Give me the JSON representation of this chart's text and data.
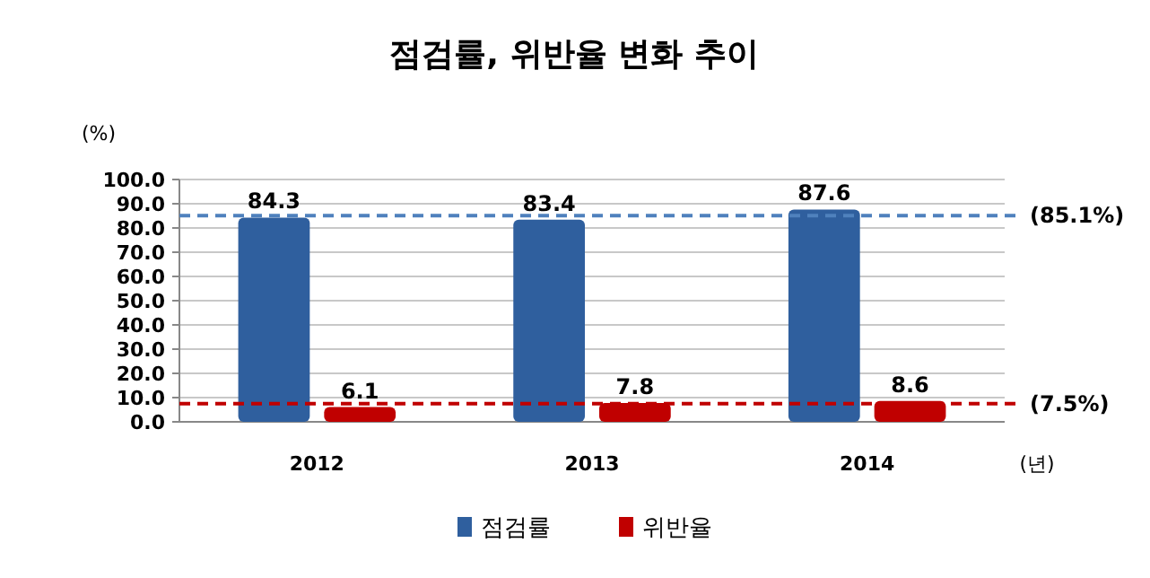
{
  "chart_data": {
    "type": "bar",
    "title": "점검률, 위반율 변화 추이",
    "ylabel": "(%)",
    "xlabel": "(년)",
    "categories": [
      "2012",
      "2013",
      "2014"
    ],
    "series": [
      {
        "name": "점검률",
        "color": "#2f5f9e",
        "values": [
          84.3,
          83.4,
          87.6
        ]
      },
      {
        "name": "위반율",
        "color": "#c00000",
        "values": [
          6.1,
          7.8,
          8.6
        ]
      }
    ],
    "ylim": [
      0,
      100
    ],
    "yticks": [
      {
        "value": 0,
        "label": "0.0"
      },
      {
        "value": 10,
        "label": "10.0"
      },
      {
        "value": 20,
        "label": "20.0"
      },
      {
        "value": 30,
        "label": "30.0"
      },
      {
        "value": 40,
        "label": "40.0"
      },
      {
        "value": 50,
        "label": "50.0"
      },
      {
        "value": 60,
        "label": "60.0"
      },
      {
        "value": 70,
        "label": "70.0"
      },
      {
        "value": 80,
        "label": "80.0"
      },
      {
        "value": 90,
        "label": "90.0"
      },
      {
        "value": 100,
        "label": "100.0"
      }
    ],
    "ref_lines": [
      {
        "axis": "y",
        "value": 85.1,
        "label": "(85.1%)",
        "color": "#4f81bd",
        "line_style": "dashed"
      },
      {
        "axis": "y",
        "value": 7.5,
        "label": "(7.5%)",
        "color": "#c00000",
        "line_style": "dashed"
      }
    ],
    "data_labels": true,
    "grid": "y",
    "legend": "bottom"
  }
}
